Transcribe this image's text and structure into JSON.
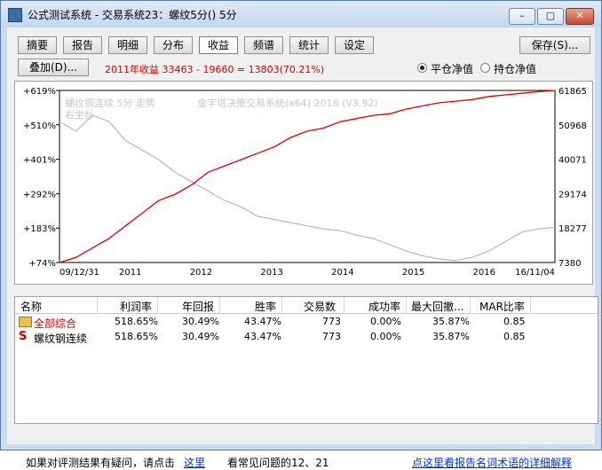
{
  "window": {
    "title": "公式测试系统 - 交易系统23：螺纹5分() 5分"
  },
  "tabs": [
    "摘要",
    "报告",
    "明细",
    "分布",
    "收益",
    "频谱",
    "统计",
    "设定"
  ],
  "active_tab": "收益",
  "save_button": "保存(S)...",
  "overlay_button": "叠加(D)...",
  "summary": "2011年收益 33463 - 19660 = 13803(70.21%)",
  "radio": {
    "option1": "平仓净值",
    "option2": "持仓净值",
    "selected": "平仓净值"
  },
  "chart_legend": {
    "line1": "螺纹钢连续 5分 走势",
    "line2": "右坐标",
    "system": "金字塔决策交易系统(x64) 2016 (V3.92)"
  },
  "colors": {
    "equity": "#e00000",
    "price": "#b8b8b8"
  },
  "chart_data": {
    "type": "line",
    "x_ticks": [
      "09/12/31",
      "2011",
      "2012",
      "2013",
      "2014",
      "2015",
      "2016",
      "16/11/04"
    ],
    "y_left_ticks": [
      "+619%",
      "+510%",
      "+401%",
      "+292%",
      "+183%",
      "+74%"
    ],
    "y_right_ticks": [
      "61865",
      "50968",
      "40071",
      "29174",
      "18277",
      "7380"
    ],
    "series": [
      {
        "name": "收益",
        "y_percent": [
          74,
          90,
          120,
          150,
          190,
          230,
          270,
          290,
          320,
          360,
          380,
          400,
          420,
          440,
          470,
          490,
          500,
          520,
          530,
          540,
          545,
          560,
          570,
          580,
          585,
          590,
          600,
          605,
          610,
          615,
          619
        ]
      },
      {
        "name": "螺纹钢连续 5分 走势",
        "y_price": [
          52000,
          49000,
          54000,
          52000,
          46000,
          43000,
          40000,
          36000,
          33000,
          30000,
          27000,
          25000,
          22000,
          21000,
          20000,
          19000,
          18000,
          17500,
          16000,
          15000,
          13000,
          11000,
          9500,
          8500,
          8000,
          9000,
          11000,
          14000,
          17000,
          18000,
          18500
        ]
      }
    ]
  },
  "table": {
    "headers": [
      "名称",
      "利润率",
      "年回报",
      "胜率",
      "交易数",
      "成功率",
      "最大回撤...",
      "MAR比率"
    ],
    "rows": [
      {
        "name": "全部综合",
        "cells": [
          "518.65%",
          "30.49%",
          "43.47%",
          "773",
          "0.00%",
          "35.87%",
          "0.85"
        ]
      },
      {
        "name": "螺纹钢连续",
        "cells": [
          "518.65%",
          "30.49%",
          "43.47%",
          "773",
          "0.00%",
          "35.87%",
          "0.85"
        ]
      }
    ]
  },
  "footer": {
    "text1": "如果对评测结果有疑问，请点击",
    "link1": "这里",
    "text2": "看常见问题的12、21",
    "link2": "点这里看报告名词术语的详细解释"
  }
}
